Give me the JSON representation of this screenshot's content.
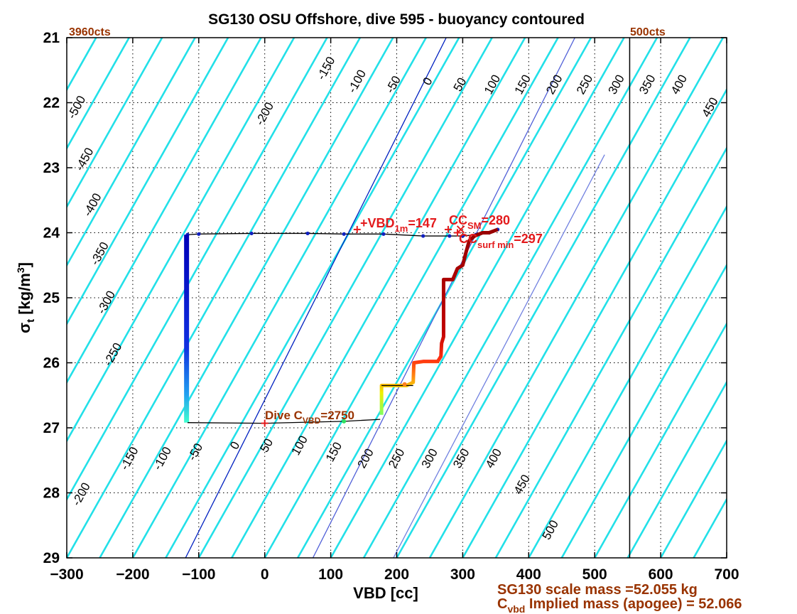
{
  "chart_data": {
    "type": "line",
    "title": "SG130 OSU Offshore, dive 595 - buoyancy contoured",
    "xlabel": "VBD [cc]",
    "ylabel": "σt [kg/m3]",
    "xlim": [
      -300,
      700
    ],
    "ylim": [
      21,
      29
    ],
    "y_reversed": true,
    "grid": true,
    "x_ticks": [
      "-300",
      "-200",
      "-100",
      "0",
      "100",
      "200",
      "300",
      "400",
      "500",
      "600",
      "700"
    ],
    "y_ticks": [
      "21",
      "22",
      "23",
      "24",
      "25",
      "26",
      "27",
      "28",
      "29"
    ],
    "contour_color": "#22e0e8",
    "contour_levels": [
      -500,
      -450,
      -400,
      -350,
      -300,
      -250,
      -200,
      -150,
      -100,
      -50,
      0,
      50,
      100,
      150,
      200,
      250,
      300,
      350,
      400,
      450,
      500
    ],
    "contour_labels_upper": [
      {
        "text": "-500",
        "x": -280,
        "y": 22.1
      },
      {
        "text": "-450",
        "x": -268,
        "y": 22.9
      },
      {
        "text": "-400",
        "x": -256,
        "y": 23.6
      },
      {
        "text": "-350",
        "x": -245,
        "y": 24.35
      },
      {
        "text": "-300",
        "x": -235,
        "y": 25.1
      },
      {
        "text": "-250",
        "x": -225,
        "y": 25.9
      },
      {
        "text": "-200",
        "x": 5,
        "y": 22.2
      },
      {
        "text": "-150",
        "x": 98,
        "y": 21.5
      },
      {
        "text": "-100",
        "x": 145,
        "y": 21.7
      },
      {
        "text": "-50",
        "x": 200,
        "y": 21.75
      },
      {
        "text": "0",
        "x": 252,
        "y": 21.7
      },
      {
        "text": "50",
        "x": 301,
        "y": 21.75
      },
      {
        "text": "100",
        "x": 350,
        "y": 21.75
      },
      {
        "text": "150",
        "x": 396,
        "y": 21.75
      },
      {
        "text": "200",
        "x": 444,
        "y": 21.75
      },
      {
        "text": "250",
        "x": 490,
        "y": 21.75
      },
      {
        "text": "300",
        "x": 538,
        "y": 21.75
      },
      {
        "text": "350",
        "x": 585,
        "y": 21.75
      },
      {
        "text": "400",
        "x": 633,
        "y": 21.75
      },
      {
        "text": "450",
        "x": 680,
        "y": 22.1
      }
    ],
    "contour_labels_lower": [
      {
        "text": "-200",
        "x": -273,
        "y": 28.05
      },
      {
        "text": "-150",
        "x": -200,
        "y": 27.5
      },
      {
        "text": "-100",
        "x": -150,
        "y": 27.5
      },
      {
        "text": "-50",
        "x": -100,
        "y": 27.4
      },
      {
        "text": "0",
        "x": -40,
        "y": 27.3
      },
      {
        "text": "50",
        "x": 8,
        "y": 27.3
      },
      {
        "text": "100",
        "x": 58,
        "y": 27.3
      },
      {
        "text": "150",
        "x": 110,
        "y": 27.4
      },
      {
        "text": "200",
        "x": 158,
        "y": 27.5
      },
      {
        "text": "250",
        "x": 205,
        "y": 27.5
      },
      {
        "text": "300",
        "x": 255,
        "y": 27.5
      },
      {
        "text": "350",
        "x": 303,
        "y": 27.5
      },
      {
        "text": "400",
        "x": 352,
        "y": 27.5
      },
      {
        "text": "450",
        "x": 395,
        "y": 27.9
      },
      {
        "text": "500",
        "x": 438,
        "y": 28.6
      }
    ],
    "blue_lines": [
      {
        "color": "#0020c0",
        "from": [
          -120,
          29
        ],
        "to": [
          275,
          21
        ]
      },
      {
        "color": "#5060d8",
        "from": [
          73,
          29
        ],
        "to": [
          470,
          21
        ]
      },
      {
        "color": "#7080e0",
        "from": [
          195,
          29
        ],
        "to": [
          515,
          22.8
        ]
      }
    ],
    "vertical_line": {
      "x": 553,
      "color": "#000000"
    },
    "counts_labels": {
      "left": "3960cts",
      "right": "500cts"
    },
    "annotations": {
      "vbd1m": {
        "pre": "+VBD",
        "sub": "1m",
        "post": "=147",
        "x": 140,
        "y": 24.0
      },
      "ccsm": {
        "pre": "CC",
        "sub": "SM",
        "post": "=280",
        "x": 280,
        "y": 23.87
      },
      "cursurfmin": {
        "pre": "CC",
        "sub": "surf min",
        "post": "=297",
        "x": 292,
        "y": 24.12
      },
      "divecvbd": {
        "pre": "Dive C",
        "sub": "VBD",
        "post": "=2750",
        "x": 0,
        "y": 26.85
      },
      "plus_markers": [
        {
          "x": 140,
          "y": 23.95
        },
        {
          "x": 278,
          "y": 23.95
        },
        {
          "x": 292,
          "y": 24.0
        }
      ],
      "x_marker": {
        "x": 297,
        "y": 23.95
      }
    },
    "footer": {
      "line1": "SG130 scale mass =52.055 kg",
      "line2_pre": "C",
      "line2_sub": "vbd",
      "line2_post": " Implied mass (apogee) = 52.066"
    },
    "series": [
      {
        "type": "descent",
        "points": [
          [
            353,
            23.95
          ],
          [
            340,
            24.0
          ],
          [
            320,
            24.03
          ],
          [
            300,
            24.05
          ],
          [
            280,
            24.05
          ],
          [
            240,
            24.05
          ],
          [
            180,
            24.02
          ],
          [
            120,
            24.02
          ],
          [
            65,
            24.01
          ],
          [
            -20,
            24.01
          ],
          [
            -100,
            24.02
          ],
          [
            -117,
            24.03
          ],
          [
            -118,
            24.6
          ],
          [
            -118,
            25.4
          ],
          [
            -118,
            26.2
          ],
          [
            -117,
            26.88
          ],
          [
            -117,
            26.92
          ]
        ]
      },
      {
        "type": "bottom_connect",
        "points": [
          [
            -117,
            26.92
          ],
          [
            0,
            26.93
          ],
          [
            120,
            26.9
          ],
          [
            175,
            26.87
          ]
        ]
      },
      {
        "type": "ascent",
        "points": [
          [
            177,
            26.8
          ],
          [
            177,
            26.35
          ],
          [
            215,
            26.35
          ],
          [
            225,
            26.3
          ],
          [
            226,
            26.0
          ],
          [
            240,
            25.98
          ],
          [
            262,
            25.98
          ],
          [
            267,
            25.9
          ],
          [
            268,
            25.7
          ],
          [
            271,
            25.6
          ],
          [
            271,
            24.72
          ],
          [
            285,
            24.72
          ],
          [
            292,
            24.55
          ],
          [
            300,
            24.5
          ],
          [
            305,
            24.3
          ],
          [
            310,
            24.12
          ],
          [
            318,
            24.05
          ],
          [
            330,
            24.0
          ],
          [
            340,
            24.0
          ],
          [
            353,
            23.95
          ]
        ]
      }
    ]
  }
}
